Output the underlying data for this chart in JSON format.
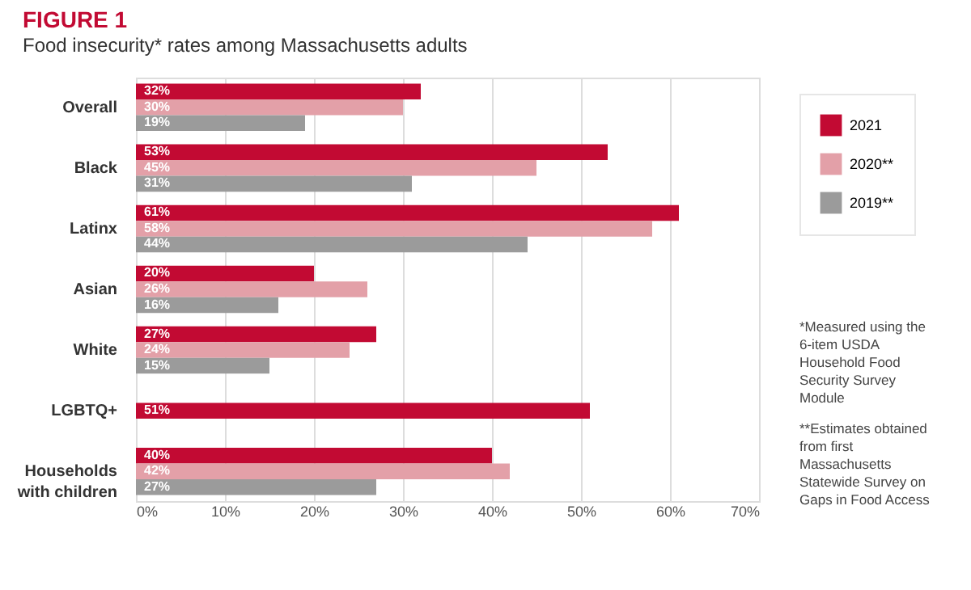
{
  "chart_data": {
    "type": "bar",
    "orientation": "horizontal",
    "title": "FIGURE 1",
    "subtitle": "Food insecurity* rates among Massachusetts adults",
    "categories": [
      "Overall",
      "Black",
      "Latinx",
      "Asian",
      "White",
      "LGBTQ+",
      "Households with children"
    ],
    "series": [
      {
        "name": "2021",
        "color": "#c20a33",
        "values": [
          32,
          53,
          61,
          20,
          27,
          51,
          40
        ],
        "value_labels": [
          "32%",
          "53%",
          "61%",
          "20%",
          "27%",
          "51%",
          "40%"
        ]
      },
      {
        "name": "2020**",
        "color": "#e3a0a8",
        "values": [
          30,
          45,
          58,
          26,
          24,
          null,
          42
        ],
        "value_labels": [
          "30%",
          "45%",
          "58%",
          "26%",
          "24%",
          null,
          "42%"
        ]
      },
      {
        "name": "2019**",
        "color": "#9b9b9b",
        "values": [
          19,
          31,
          44,
          16,
          15,
          null,
          27
        ],
        "value_labels": [
          "19%",
          "31%",
          "44%",
          "16%",
          "15%",
          null,
          "27%"
        ]
      }
    ],
    "xlim": [
      0,
      70
    ],
    "xticks": [
      {
        "value": 0,
        "label": "0%"
      },
      {
        "value": 10,
        "label": "10%"
      },
      {
        "value": 20,
        "label": "20%"
      },
      {
        "value": 30,
        "label": "30%"
      },
      {
        "value": 40,
        "label": "40%"
      },
      {
        "value": 50,
        "label": "50%"
      },
      {
        "value": 60,
        "label": "60%"
      },
      {
        "value": 70,
        "label": "70%"
      }
    ],
    "grid": "x",
    "legend": "right",
    "annotations": [
      "*Measured using the 6-item USDA Household Food Security Survey Module",
      "**Estimates obtained from first Massachusetts Statewide Survey on Gaps in Food Access"
    ]
  }
}
